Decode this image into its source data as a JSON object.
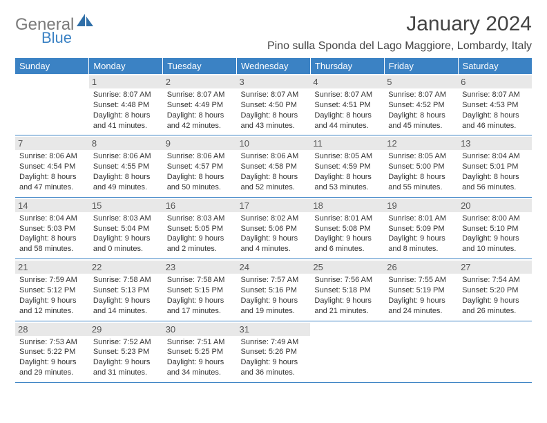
{
  "logo": {
    "text1": "General",
    "text2": "Blue"
  },
  "title": "January 2024",
  "location": "Pino sulla Sponda del Lago Maggiore, Lombardy, Italy",
  "day_headers": [
    "Sunday",
    "Monday",
    "Tuesday",
    "Wednesday",
    "Thursday",
    "Friday",
    "Saturday"
  ],
  "colors": {
    "header_bg": "#3b82c4",
    "header_fg": "#ffffff",
    "daynum_bg": "#e8e8e8",
    "border": "#3b82c4"
  },
  "weeks": [
    [
      {
        "num": "",
        "info": [
          "",
          "",
          "",
          ""
        ],
        "empty": true
      },
      {
        "num": "1",
        "info": [
          "Sunrise: 8:07 AM",
          "Sunset: 4:48 PM",
          "Daylight: 8 hours",
          "and 41 minutes."
        ]
      },
      {
        "num": "2",
        "info": [
          "Sunrise: 8:07 AM",
          "Sunset: 4:49 PM",
          "Daylight: 8 hours",
          "and 42 minutes."
        ]
      },
      {
        "num": "3",
        "info": [
          "Sunrise: 8:07 AM",
          "Sunset: 4:50 PM",
          "Daylight: 8 hours",
          "and 43 minutes."
        ]
      },
      {
        "num": "4",
        "info": [
          "Sunrise: 8:07 AM",
          "Sunset: 4:51 PM",
          "Daylight: 8 hours",
          "and 44 minutes."
        ]
      },
      {
        "num": "5",
        "info": [
          "Sunrise: 8:07 AM",
          "Sunset: 4:52 PM",
          "Daylight: 8 hours",
          "and 45 minutes."
        ]
      },
      {
        "num": "6",
        "info": [
          "Sunrise: 8:07 AM",
          "Sunset: 4:53 PM",
          "Daylight: 8 hours",
          "and 46 minutes."
        ]
      }
    ],
    [
      {
        "num": "7",
        "info": [
          "Sunrise: 8:06 AM",
          "Sunset: 4:54 PM",
          "Daylight: 8 hours",
          "and 47 minutes."
        ]
      },
      {
        "num": "8",
        "info": [
          "Sunrise: 8:06 AM",
          "Sunset: 4:55 PM",
          "Daylight: 8 hours",
          "and 49 minutes."
        ]
      },
      {
        "num": "9",
        "info": [
          "Sunrise: 8:06 AM",
          "Sunset: 4:57 PM",
          "Daylight: 8 hours",
          "and 50 minutes."
        ]
      },
      {
        "num": "10",
        "info": [
          "Sunrise: 8:06 AM",
          "Sunset: 4:58 PM",
          "Daylight: 8 hours",
          "and 52 minutes."
        ]
      },
      {
        "num": "11",
        "info": [
          "Sunrise: 8:05 AM",
          "Sunset: 4:59 PM",
          "Daylight: 8 hours",
          "and 53 minutes."
        ]
      },
      {
        "num": "12",
        "info": [
          "Sunrise: 8:05 AM",
          "Sunset: 5:00 PM",
          "Daylight: 8 hours",
          "and 55 minutes."
        ]
      },
      {
        "num": "13",
        "info": [
          "Sunrise: 8:04 AM",
          "Sunset: 5:01 PM",
          "Daylight: 8 hours",
          "and 56 minutes."
        ]
      }
    ],
    [
      {
        "num": "14",
        "info": [
          "Sunrise: 8:04 AM",
          "Sunset: 5:03 PM",
          "Daylight: 8 hours",
          "and 58 minutes."
        ]
      },
      {
        "num": "15",
        "info": [
          "Sunrise: 8:03 AM",
          "Sunset: 5:04 PM",
          "Daylight: 9 hours",
          "and 0 minutes."
        ]
      },
      {
        "num": "16",
        "info": [
          "Sunrise: 8:03 AM",
          "Sunset: 5:05 PM",
          "Daylight: 9 hours",
          "and 2 minutes."
        ]
      },
      {
        "num": "17",
        "info": [
          "Sunrise: 8:02 AM",
          "Sunset: 5:06 PM",
          "Daylight: 9 hours",
          "and 4 minutes."
        ]
      },
      {
        "num": "18",
        "info": [
          "Sunrise: 8:01 AM",
          "Sunset: 5:08 PM",
          "Daylight: 9 hours",
          "and 6 minutes."
        ]
      },
      {
        "num": "19",
        "info": [
          "Sunrise: 8:01 AM",
          "Sunset: 5:09 PM",
          "Daylight: 9 hours",
          "and 8 minutes."
        ]
      },
      {
        "num": "20",
        "info": [
          "Sunrise: 8:00 AM",
          "Sunset: 5:10 PM",
          "Daylight: 9 hours",
          "and 10 minutes."
        ]
      }
    ],
    [
      {
        "num": "21",
        "info": [
          "Sunrise: 7:59 AM",
          "Sunset: 5:12 PM",
          "Daylight: 9 hours",
          "and 12 minutes."
        ]
      },
      {
        "num": "22",
        "info": [
          "Sunrise: 7:58 AM",
          "Sunset: 5:13 PM",
          "Daylight: 9 hours",
          "and 14 minutes."
        ]
      },
      {
        "num": "23",
        "info": [
          "Sunrise: 7:58 AM",
          "Sunset: 5:15 PM",
          "Daylight: 9 hours",
          "and 17 minutes."
        ]
      },
      {
        "num": "24",
        "info": [
          "Sunrise: 7:57 AM",
          "Sunset: 5:16 PM",
          "Daylight: 9 hours",
          "and 19 minutes."
        ]
      },
      {
        "num": "25",
        "info": [
          "Sunrise: 7:56 AM",
          "Sunset: 5:18 PM",
          "Daylight: 9 hours",
          "and 21 minutes."
        ]
      },
      {
        "num": "26",
        "info": [
          "Sunrise: 7:55 AM",
          "Sunset: 5:19 PM",
          "Daylight: 9 hours",
          "and 24 minutes."
        ]
      },
      {
        "num": "27",
        "info": [
          "Sunrise: 7:54 AM",
          "Sunset: 5:20 PM",
          "Daylight: 9 hours",
          "and 26 minutes."
        ]
      }
    ],
    [
      {
        "num": "28",
        "info": [
          "Sunrise: 7:53 AM",
          "Sunset: 5:22 PM",
          "Daylight: 9 hours",
          "and 29 minutes."
        ]
      },
      {
        "num": "29",
        "info": [
          "Sunrise: 7:52 AM",
          "Sunset: 5:23 PM",
          "Daylight: 9 hours",
          "and 31 minutes."
        ]
      },
      {
        "num": "30",
        "info": [
          "Sunrise: 7:51 AM",
          "Sunset: 5:25 PM",
          "Daylight: 9 hours",
          "and 34 minutes."
        ]
      },
      {
        "num": "31",
        "info": [
          "Sunrise: 7:49 AM",
          "Sunset: 5:26 PM",
          "Daylight: 9 hours",
          "and 36 minutes."
        ]
      },
      {
        "num": "",
        "info": [
          "",
          "",
          "",
          ""
        ],
        "empty": true
      },
      {
        "num": "",
        "info": [
          "",
          "",
          "",
          ""
        ],
        "empty": true
      },
      {
        "num": "",
        "info": [
          "",
          "",
          "",
          ""
        ],
        "empty": true
      }
    ]
  ]
}
